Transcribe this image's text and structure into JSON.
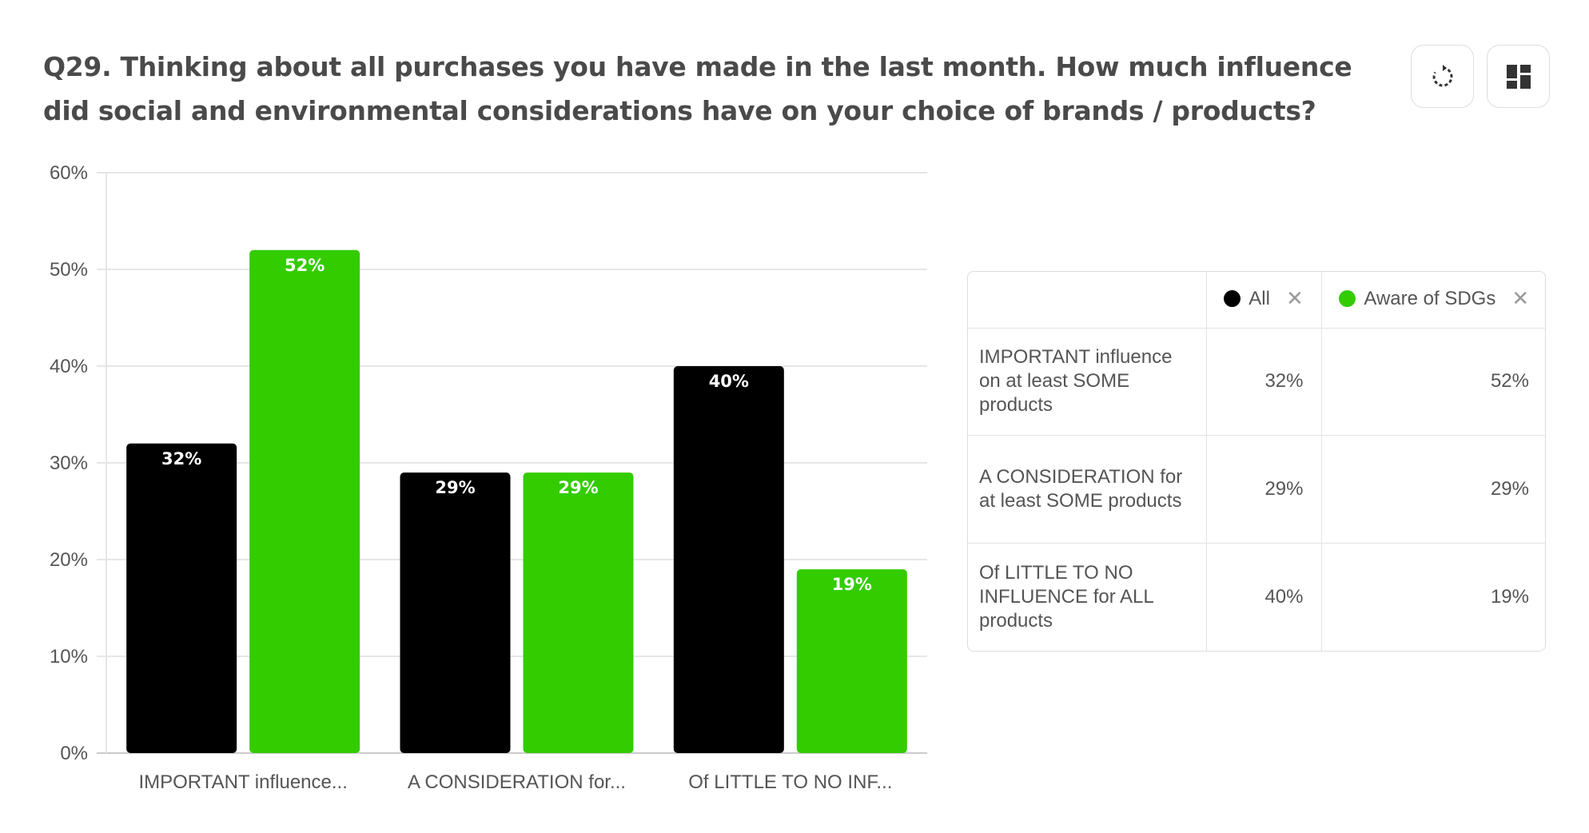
{
  "header": {
    "question": "Q29. Thinking about all purchases you have made in the last month. How much influence did social and environmental considerations have on your choice of brands / products?"
  },
  "toolbar": {
    "refresh_icon": "refresh-icon",
    "layout_icon": "dashboard-layout-icon"
  },
  "colors": {
    "all": "#000000",
    "aware": "#33cc00",
    "grid": "#e6e6e6",
    "axis": "#cccccc"
  },
  "chart_data": {
    "type": "bar",
    "categories": [
      "IMPORTANT influence...",
      "A CONSIDERATION for...",
      "Of LITTLE TO NO INF..."
    ],
    "series": [
      {
        "name": "All",
        "values": [
          32,
          29,
          40
        ],
        "labels": [
          "32%",
          "29%",
          "40%"
        ]
      },
      {
        "name": "Aware of SDGs",
        "values": [
          52,
          29,
          19
        ],
        "labels": [
          "52%",
          "29%",
          "19%"
        ]
      }
    ],
    "ylim": [
      0,
      60
    ],
    "yticks": [
      "0%",
      "10%",
      "20%",
      "30%",
      "40%",
      "50%",
      "60%"
    ],
    "grid": true
  },
  "table": {
    "columns": [
      "All",
      "Aware of SDGs"
    ],
    "rows": [
      {
        "label": "IMPORTANT influence on at least SOME products",
        "values": [
          "32%",
          "52%"
        ]
      },
      {
        "label": "A CONSIDERATION for at least SOME products",
        "values": [
          "29%",
          "29%"
        ]
      },
      {
        "label": "Of LITTLE TO NO INFLUENCE for ALL products",
        "values": [
          "40%",
          "19%"
        ]
      }
    ]
  }
}
